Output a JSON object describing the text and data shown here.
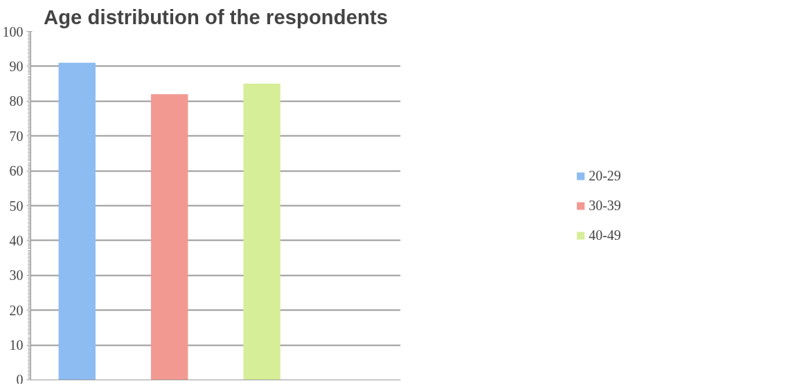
{
  "chart_data": {
    "type": "bar",
    "title": "Age distribution of the respondents",
    "categories": [
      null,
      null,
      null,
      null
    ],
    "series": [
      {
        "name": "20-29",
        "color": "#8dbcf2",
        "values": [
          91,
          null,
          null,
          null
        ]
      },
      {
        "name": "30-39",
        "color": "#f29a92",
        "values": [
          null,
          82,
          null,
          null
        ]
      },
      {
        "name": "40-49",
        "color": "#d6ee98",
        "values": [
          null,
          null,
          85,
          null
        ]
      }
    ],
    "ylim": [
      0,
      100
    ],
    "yticks": [
      0,
      10,
      20,
      30,
      40,
      50,
      60,
      70,
      80,
      90,
      100
    ],
    "grid": "y",
    "legend": "right"
  }
}
